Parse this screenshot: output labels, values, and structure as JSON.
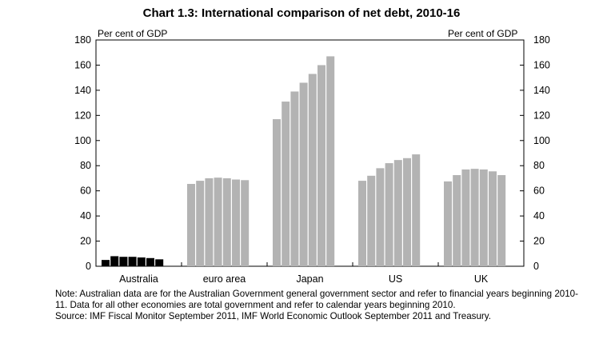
{
  "chart_data": {
    "type": "bar",
    "title": "Chart 1.3: International comparison of net debt, 2010-16",
    "ylabel_left": "Per cent of GDP",
    "ylabel_right": "Per cent of GDP",
    "ylim": [
      0,
      180
    ],
    "yticks": [
      0,
      20,
      40,
      60,
      80,
      100,
      120,
      140,
      160,
      180
    ],
    "grid": false,
    "groups": [
      {
        "name": "Australia",
        "color": "#000000",
        "values": [
          5,
          8,
          7.5,
          7.5,
          7,
          6.5,
          5.5
        ]
      },
      {
        "name": "euro area",
        "color": "#b3b3b3",
        "values": [
          65.5,
          68,
          70,
          70.5,
          70,
          69,
          68.5
        ]
      },
      {
        "name": "Japan",
        "color": "#b3b3b3",
        "values": [
          117,
          131,
          139,
          146,
          153,
          160,
          167
        ]
      },
      {
        "name": "US",
        "color": "#b3b3b3",
        "values": [
          68,
          72,
          78,
          82,
          84.5,
          86,
          89
        ]
      },
      {
        "name": "UK",
        "color": "#b3b3b3",
        "values": [
          67.5,
          72.5,
          77,
          77.5,
          77,
          75.5,
          72.5
        ]
      }
    ]
  },
  "notes": {
    "note": "Note: Australian data are for the Australian Government general government sector and refer to financial years beginning 2010-11. Data for all other economies are total government and refer to calendar years beginning 2010.",
    "source": "Source: IMF Fiscal Monitor September 2011, IMF World Economic Outlook September 2011 and Treasury."
  }
}
